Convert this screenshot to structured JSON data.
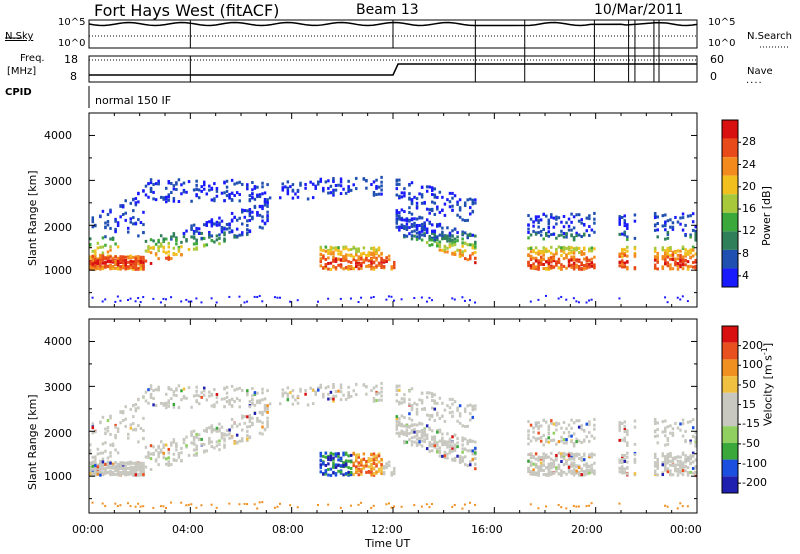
{
  "header": {
    "station": "Fort Hays West (fitACF)",
    "beam": "Beam 13",
    "date": "10/Mar/2011"
  },
  "status_panels": {
    "nsky_label": "N.Sky",
    "nsearch_label": "N.Search",
    "noise_ticks_left": [
      "10^5",
      "10^0"
    ],
    "noise_ticks_right": [
      "10^5",
      "10^0"
    ],
    "freq_label_line1": "Freq.",
    "freq_label_line2": "[MHz]",
    "freq_ticks": [
      "18",
      "8"
    ],
    "nave_label": "Nave",
    "nave_ticks": [
      "60",
      "0"
    ],
    "cpid_label": "CPID",
    "cpid_value": "normal 150 IF"
  },
  "colors": {
    "power": [
      "#1a1aff",
      "#1f4fb0",
      "#2f7f5a",
      "#3aa83a",
      "#a8c83c",
      "#f2c01e",
      "#f28a1e",
      "#e84a1a",
      "#d81010"
    ],
    "velocity": [
      "#2020b0",
      "#1a4fe0",
      "#3aa83a",
      "#8fd060",
      "#c8c8c0",
      "#c8c8c0",
      "#f0c040",
      "#f09020",
      "#e85020",
      "#d81010"
    ]
  },
  "chart_data": [
    {
      "type": "heatmap",
      "name": "power",
      "ylabel": "Slant Range [km]",
      "xlabel": "Time UT",
      "x_ticks": [
        "00:00",
        "04:00",
        "08:00",
        "12:00",
        "16:00",
        "20:00",
        "00:00"
      ],
      "xlim_hours": [
        0,
        24
      ],
      "y_ticks": [
        "1000",
        "2000",
        "3000",
        "4000"
      ],
      "ylim": [
        180,
        4500
      ],
      "colorbar_label": "Power [dB]",
      "colorbar_ticks": [
        "28",
        "24",
        "20",
        "16",
        "12",
        "8",
        "4"
      ],
      "colorbar_range": [
        0,
        30
      ]
    },
    {
      "type": "heatmap",
      "name": "velocity",
      "ylabel": "Slant Range [km]",
      "xlabel": "Time UT",
      "x_ticks": [
        "00:00",
        "04:00",
        "08:00",
        "12:00",
        "16:00",
        "20:00",
        "00:00"
      ],
      "xlim_hours": [
        0,
        24
      ],
      "y_ticks": [
        "1000",
        "2000",
        "3000",
        "4000"
      ],
      "ylim": [
        180,
        4500
      ],
      "colorbar_label": "Velocity [m s^-1]",
      "colorbar_ticks": [
        "200",
        "100",
        "50",
        "15",
        "-15",
        "-50",
        "-100",
        "-200"
      ]
    }
  ],
  "x_axis_title": "Time UT"
}
